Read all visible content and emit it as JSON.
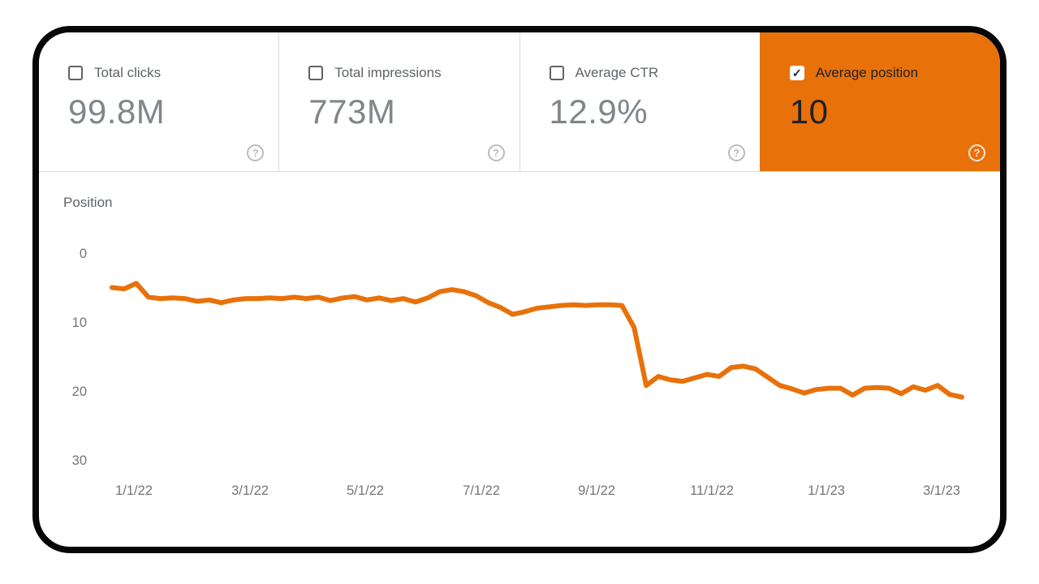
{
  "metrics": {
    "checkmark": "✓",
    "help_label": "?",
    "cards": [
      {
        "label": "Total clicks",
        "value": "99.8M",
        "checked": false,
        "selected": false
      },
      {
        "label": "Total impressions",
        "value": "773M",
        "checked": false,
        "selected": false
      },
      {
        "label": "Average CTR",
        "value": "12.9%",
        "checked": false,
        "selected": false
      },
      {
        "label": "Average position",
        "value": "10",
        "checked": true,
        "selected": true
      }
    ]
  },
  "colors": {
    "selected_card_bg": "#E8710A",
    "line": "#E8710A",
    "axis_text": "#757575",
    "divider": "#dadce0",
    "card_border": "#070707"
  },
  "chart_data": {
    "type": "line",
    "title": "Position",
    "ylabel": "Position",
    "xlabel": "",
    "grid": "off",
    "legend": "none",
    "y_axis": {
      "ticks": [
        0,
        10,
        20,
        30
      ],
      "range": [
        0,
        30
      ],
      "inverted": true
    },
    "x_tick_labels": [
      "1/1/22",
      "3/1/22",
      "5/1/22",
      "7/1/22",
      "9/1/22",
      "11/1/22",
      "1/1/23",
      "3/1/23"
    ],
    "series": [
      {
        "name": "Average position",
        "color": "#E8710A",
        "cadence": "weekly",
        "values": [
          5.0,
          5.2,
          4.4,
          6.4,
          6.6,
          6.5,
          6.6,
          7.0,
          6.8,
          7.2,
          6.8,
          6.6,
          6.6,
          6.5,
          6.6,
          6.4,
          6.6,
          6.4,
          6.9,
          6.5,
          6.3,
          6.8,
          6.5,
          6.9,
          6.6,
          7.1,
          6.5,
          5.6,
          5.3,
          5.6,
          6.2,
          7.2,
          7.9,
          8.9,
          8.5,
          8.0,
          7.8,
          7.6,
          7.5,
          7.6,
          7.5,
          7.5,
          7.6,
          10.8,
          19.2,
          17.9,
          18.4,
          18.6,
          18.1,
          17.6,
          17.9,
          16.6,
          16.4,
          16.8,
          18.0,
          19.2,
          19.7,
          20.3,
          19.8,
          19.6,
          19.6,
          20.6,
          19.6,
          19.5,
          19.6,
          20.4,
          19.4,
          19.9,
          19.2,
          20.5,
          20.9
        ]
      }
    ]
  }
}
